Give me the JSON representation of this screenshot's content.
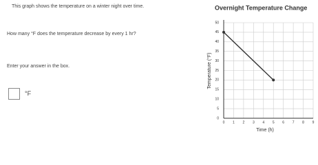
{
  "question": {
    "intro": "This graph shows the temperature on a winter night over time.",
    "prompt": "How many °F does the temperature decrease by every 1 hr?",
    "instruction": "Enter your answer in the box.",
    "unit": "°F"
  },
  "chart_data": {
    "type": "line",
    "title": "Overnight Temperature Change",
    "x_label": "Time (h)",
    "y_label": "Temperature (°F)",
    "x": [
      0,
      5
    ],
    "series": [
      {
        "name": "Temperature",
        "color": "#333333",
        "values": [
          45,
          20
        ]
      }
    ],
    "xlim": [
      0,
      9
    ],
    "xticks": [
      0,
      1,
      2,
      3,
      4,
      5,
      6,
      7,
      8,
      9
    ],
    "ylim": [
      0,
      50
    ],
    "yticks": [
      0,
      5,
      10,
      15,
      20,
      25,
      30,
      35,
      40,
      45,
      50
    ],
    "grid": true
  }
}
